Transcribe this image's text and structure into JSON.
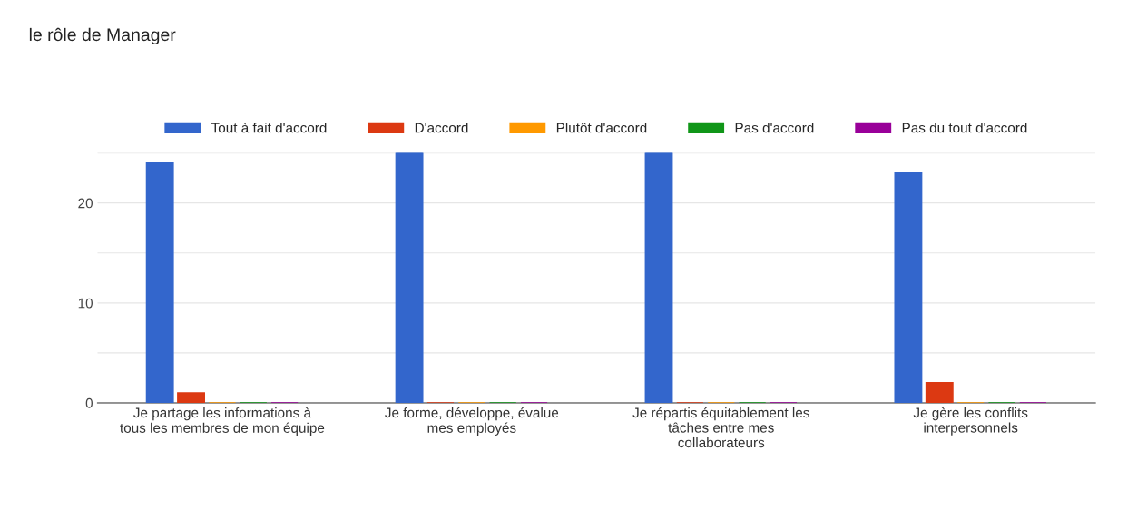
{
  "chart_data": {
    "type": "bar",
    "title": "le rôle de Manager",
    "categories": [
      "Je partage les informations à tous les membres de mon équipe",
      "Je forme, développe, évalue mes employés",
      "Je répartis équitablement les tâches entre mes collaborateurs",
      "Je gère les conflits interpersonnels"
    ],
    "series": [
      {
        "name": "Tout à fait d'accord",
        "color": "#3366cc",
        "values": [
          24,
          25,
          25,
          23
        ]
      },
      {
        "name": "D'accord",
        "color": "#dc3912",
        "values": [
          1,
          0,
          0,
          2
        ]
      },
      {
        "name": "Plutôt d'accord",
        "color": "#ff9900",
        "values": [
          0,
          0,
          0,
          0
        ]
      },
      {
        "name": "Pas d'accord",
        "color": "#109618",
        "values": [
          0,
          0,
          0,
          0
        ]
      },
      {
        "name": "Pas du tout d'accord",
        "color": "#990099",
        "values": [
          0,
          0,
          0,
          0
        ]
      }
    ],
    "ylim": [
      0,
      25
    ],
    "yticks": [
      0,
      {
        "value": 5,
        "label": null
      },
      10,
      {
        "value": 15,
        "label": null
      },
      20,
      {
        "value": 25,
        "label": null
      }
    ],
    "grid": "y",
    "legend": "top"
  }
}
